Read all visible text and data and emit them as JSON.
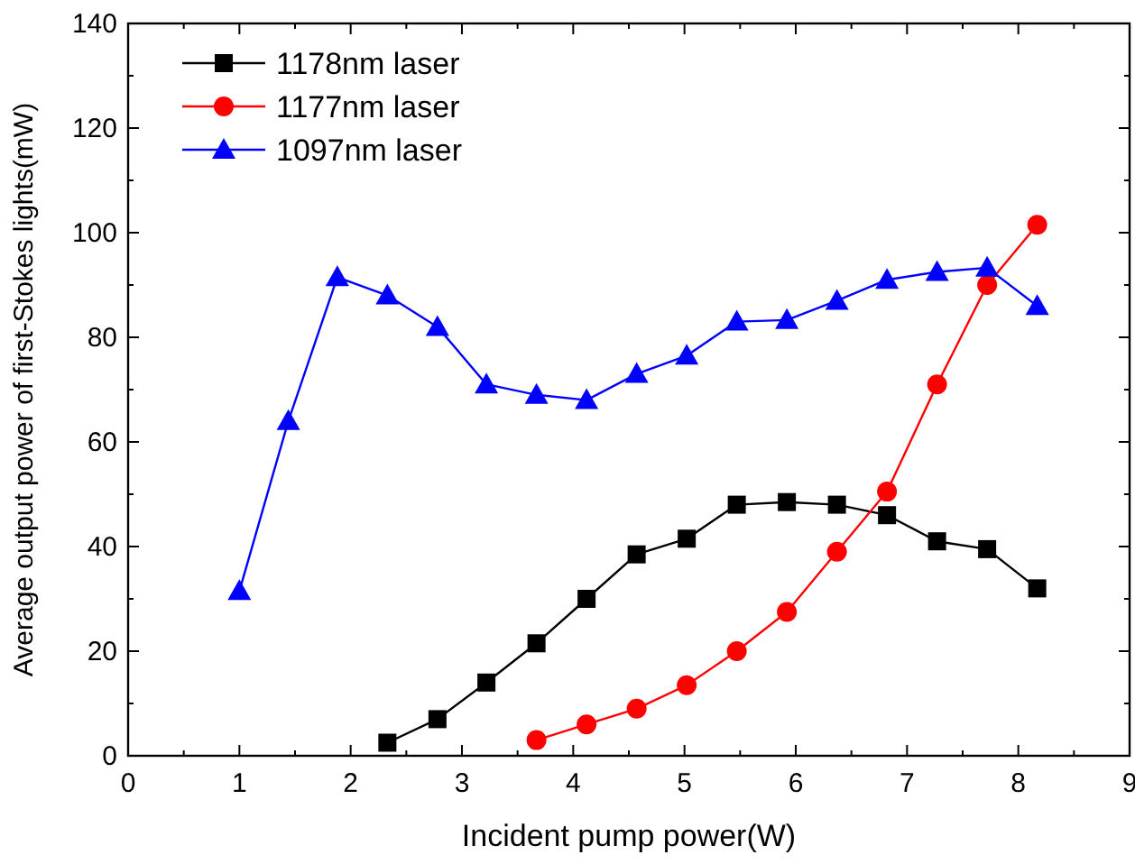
{
  "chart_data": {
    "type": "line",
    "xlabel": "Incident pump power(W)",
    "ylabel": "Average output power of first-Stokes lights(mW)",
    "xlim": [
      0,
      9
    ],
    "xticks": [
      0,
      1,
      2,
      3,
      4,
      5,
      6,
      7,
      8,
      9
    ],
    "ylim": [
      0,
      140
    ],
    "yticks": [
      0,
      20,
      40,
      60,
      80,
      100,
      120,
      140
    ],
    "grid": false,
    "legend": "top left",
    "series": [
      {
        "name": "1178nm laser",
        "color": "#000000",
        "marker": "square",
        "x": [
          2.33,
          2.78,
          3.22,
          3.67,
          4.12,
          4.57,
          5.02,
          5.47,
          5.92,
          6.37,
          6.82,
          7.27,
          7.72,
          8.17
        ],
        "values": [
          2.5,
          7,
          14,
          21.5,
          30,
          38.5,
          41.5,
          48,
          48.5,
          48,
          46,
          41,
          39.5,
          32
        ]
      },
      {
        "name": "1177nm laser",
        "color": "#ff0000",
        "marker": "circle",
        "x": [
          3.67,
          4.12,
          4.57,
          5.02,
          5.47,
          5.92,
          6.37,
          6.82,
          7.27,
          7.72,
          8.17
        ],
        "values": [
          3,
          6,
          9,
          13.5,
          20,
          27.5,
          39,
          50.5,
          71,
          90,
          101.5
        ]
      },
      {
        "name": "1097nm laser",
        "color": "#0000ff",
        "marker": "triangle",
        "x": [
          1.0,
          1.44,
          1.88,
          2.33,
          2.78,
          3.22,
          3.67,
          4.12,
          4.57,
          5.02,
          5.47,
          5.92,
          6.37,
          6.82,
          7.27,
          7.72,
          8.17
        ],
        "values": [
          31.5,
          64,
          91.5,
          88,
          82,
          71,
          69,
          68,
          73,
          76.5,
          83,
          83.3,
          87,
          91,
          92.5,
          93.3,
          86
        ]
      }
    ]
  }
}
